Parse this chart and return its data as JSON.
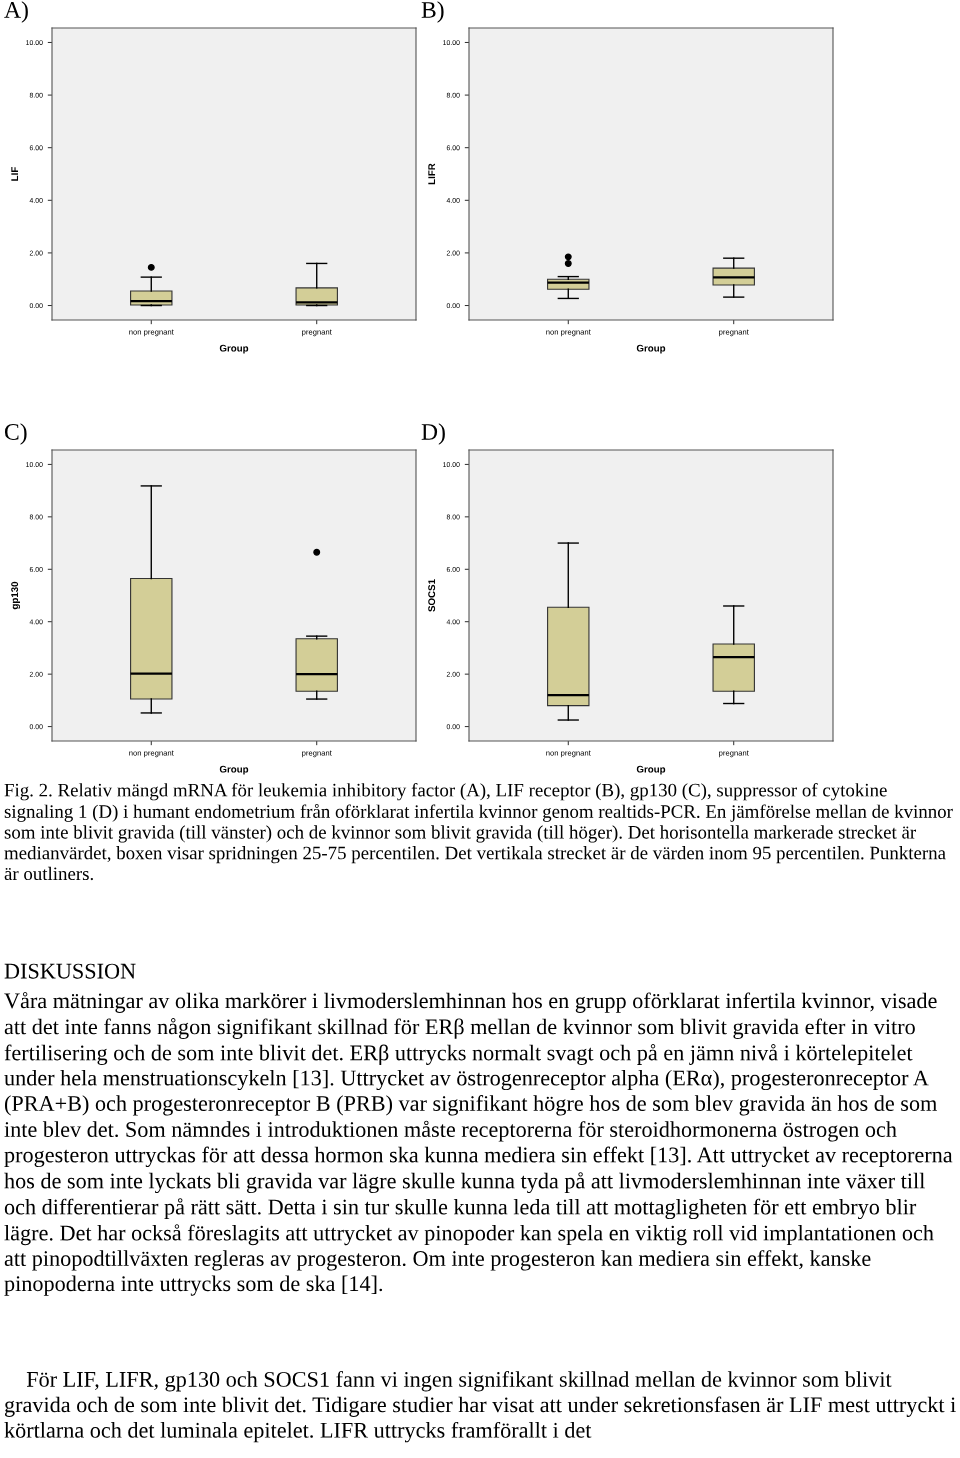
{
  "chart_data": [
    {
      "type": "box",
      "title": "A)",
      "xlabel": "Group",
      "ylabel": "LIF",
      "categories": [
        "non pregnant",
        "pregnant"
      ],
      "ylim": [
        -0.55,
        10.55
      ],
      "yticks": [
        {
          "value": 0,
          "label": "0.00"
        },
        {
          "value": 2,
          "label": "2.00"
        },
        {
          "value": 4,
          "label": "4.00"
        },
        {
          "value": 6,
          "label": "6.00"
        },
        {
          "value": 8,
          "label": "8.00"
        },
        {
          "value": 10,
          "label": "10.00"
        }
      ],
      "color": "#d3ce97",
      "boxes": [
        {
          "low": 0,
          "q1": 0.02,
          "median": 0.17,
          "q3": 0.55,
          "high": 1.08,
          "outliers": [
            1.45
          ]
        },
        {
          "low": 0,
          "q1": 0.02,
          "median": 0.12,
          "q3": 0.67,
          "high": 1.6
        }
      ]
    },
    {
      "type": "box",
      "title": "B)",
      "xlabel": "Group",
      "ylabel": "LIFR",
      "categories": [
        "non pregnant",
        "pregnant"
      ],
      "ylim": [
        -0.55,
        10.55
      ],
      "yticks": [
        {
          "value": 0,
          "label": "0.00"
        },
        {
          "value": 2,
          "label": "2.00"
        },
        {
          "value": 4,
          "label": "4.00"
        },
        {
          "value": 6,
          "label": "6.00"
        },
        {
          "value": 8,
          "label": "8.00"
        },
        {
          "value": 10,
          "label": "10.00"
        }
      ],
      "color": "#d3ce97",
      "boxes": [
        {
          "low": 0.27,
          "q1": 0.62,
          "median": 0.87,
          "q3": 1.0,
          "high": 1.1,
          "outliers": [
            1.6,
            1.85
          ]
        },
        {
          "low": 0.32,
          "q1": 0.78,
          "median": 1.07,
          "q3": 1.42,
          "high": 1.8
        }
      ]
    },
    {
      "type": "box",
      "title": "C)",
      "xlabel": "Group",
      "ylabel": "gp130",
      "categories": [
        "non pregnant",
        "pregnant"
      ],
      "ylim": [
        -0.55,
        10.55
      ],
      "yticks": [
        {
          "value": 0,
          "label": "0.00"
        },
        {
          "value": 2,
          "label": "2.00"
        },
        {
          "value": 4,
          "label": "4.00"
        },
        {
          "value": 6,
          "label": "6.00"
        },
        {
          "value": 8,
          "label": "8.00"
        },
        {
          "value": 10,
          "label": "10.00"
        }
      ],
      "color": "#d3ce97",
      "boxes": [
        {
          "low": 0.52,
          "q1": 1.05,
          "median": 2.02,
          "q3": 5.65,
          "high": 9.18
        },
        {
          "low": 1.05,
          "q1": 1.35,
          "median": 2.0,
          "q3": 3.35,
          "high": 3.45,
          "outliers": [
            6.65
          ]
        }
      ]
    },
    {
      "type": "box",
      "title": "D)",
      "xlabel": "Group",
      "ylabel": "SOCS1",
      "categories": [
        "non pregnant",
        "pregnant"
      ],
      "ylim": [
        -0.55,
        10.55
      ],
      "yticks": [
        {
          "value": 0,
          "label": "0.00"
        },
        {
          "value": 2,
          "label": "2.00"
        },
        {
          "value": 4,
          "label": "4.00"
        },
        {
          "value": 6,
          "label": "6.00"
        },
        {
          "value": 8,
          "label": "8.00"
        },
        {
          "value": 10,
          "label": "10.00"
        }
      ],
      "color": "#d3ce97",
      "boxes": [
        {
          "low": 0.25,
          "q1": 0.8,
          "median": 1.2,
          "q3": 4.55,
          "high": 7.0
        },
        {
          "low": 0.88,
          "q1": 1.35,
          "median": 2.65,
          "q3": 3.15,
          "high": 4.6
        }
      ],
      "annotations": [
        "Fig. 2. Relativ mängd mRNA för leukemia inhibitory factor (A), LIF receptor (B), gp130 (C), suppressor of cytokine signaling 1 (D) i humant endometrium från oförklarat infertila kvinnor genom realtids-PCR. En jämförelse mellan de kvinnor som inte blivit gravida (till vänster) och de kvinnor som blivit gravida (till höger). Det horisontella markerade strecket är medianvärdet, boxen visar spridningen 25-75 percentilen. Det vertikala strecket är de värden inom 95 percentilen. Punkterna är outliners.",
        "DISKUSSION",
        "Våra mätningar av olika markörer i livmoderslemhinnan hos en grupp oförklarat infertila kvinnor, visade att det inte fanns någon signifikant skillnad för ERβ mellan de kvinnor som blivit gravida efter in vitro fertilisering och de som inte blivit det. ERβ uttrycks normalt svagt och på en jämn nivå i körtelepitelet under hela menstruationscykeln [13]. Uttrycket av östrogenreceptor alpha (ERα), progesteronreceptor A (PRA+B) och progesteronreceptor B (PRB) var signifikant högre hos de som blev gravida än hos de som inte blev det. Som nämndes i introduktionen måste receptorerna för steroidhormonerna östrogen och progesteron uttryckas för att dessa hormon ska kunna mediera sin effekt [13]. Att uttrycket av receptorerna hos de som inte lyckats bli gravida var lägre skulle kunna tyda på att livmoderslemhinnan inte växer till och differentierar på rätt sätt. Detta i sin tur skulle kunna leda till att mottagligheten för ett embryo blir lägre. Det har också föreslagits att uttrycket av pinopoder kan spela en viktig roll vid implantationen och att pinopodtillväxten regleras av progesteron. Om inte progesteron kan mediera sin effekt, kanske pinopoderna inte uttrycks som de ska [14].",
        "För LIF, LIFR, gp130 och SOCS1 fann vi ingen signifikant skillnad mellan de kvinnor som blivit gravida och de som inte blivit det. Tidigare studier har visat att under sekretionsfasen är LIF mest uttryckt i körtlarna och det luminala epitelet. LIFR uttrycks framförallt i det"
      ]
    }
  ]
}
